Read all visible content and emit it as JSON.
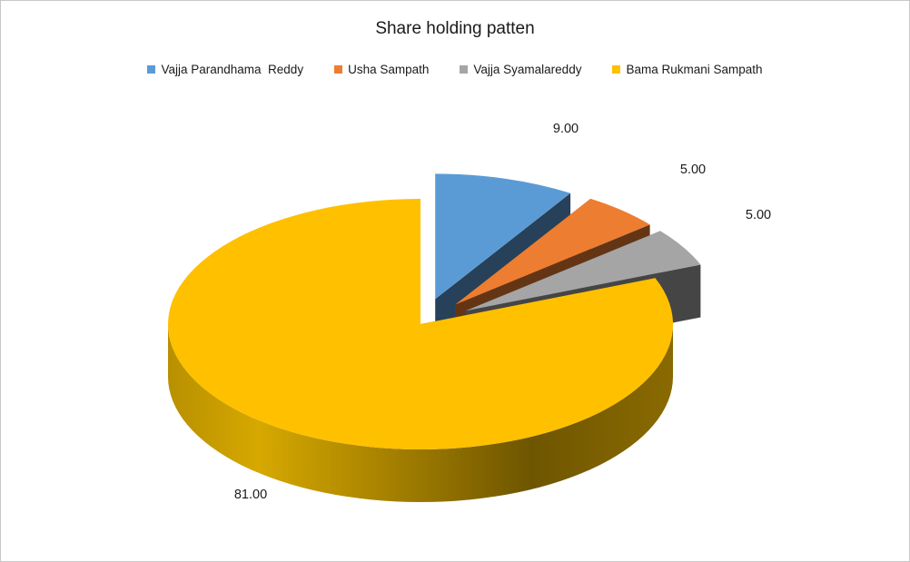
{
  "chart_data": {
    "type": "pie",
    "title": "Share holding patten",
    "legend_position": "top",
    "slices": [
      {
        "name": "Vajja Parandhama  Reddy",
        "value": 9.0,
        "label": "9.00",
        "color": "#5b9bd5",
        "exploded": true
      },
      {
        "name": "Usha Sampath",
        "value": 5.0,
        "label": "5.00",
        "color": "#ed7d31",
        "exploded": true
      },
      {
        "name": "Vajja Syamalareddy",
        "value": 5.0,
        "label": "5.00",
        "color": "#a5a5a5",
        "exploded": true
      },
      {
        "name": "Bama Rukmani Sampath",
        "value": 81.0,
        "label": "81.00",
        "color": "#ffc000",
        "exploded": false
      }
    ]
  }
}
